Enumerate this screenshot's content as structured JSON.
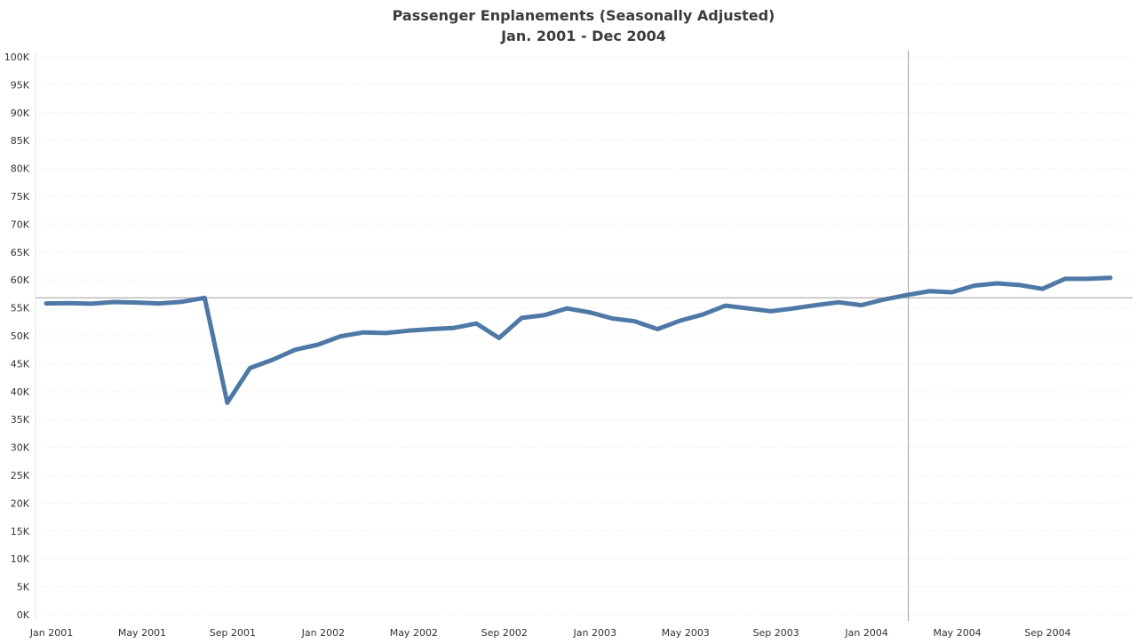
{
  "chart_data": {
    "type": "line",
    "title": "Passenger Enplanements (Seasonally Adjusted)",
    "subtitle": "Jan. 2001 - Dec 2004",
    "xlabel": "",
    "ylabel": "",
    "ylim": [
      0,
      100000
    ],
    "y_ticks": [
      0,
      5000,
      10000,
      15000,
      20000,
      25000,
      30000,
      35000,
      40000,
      45000,
      50000,
      55000,
      60000,
      65000,
      70000,
      75000,
      80000,
      85000,
      90000,
      95000,
      100000
    ],
    "y_tick_labels": [
      "0K",
      "5K",
      "10K",
      "15K",
      "20K",
      "25K",
      "30K",
      "35K",
      "40K",
      "45K",
      "50K",
      "55K",
      "60K",
      "65K",
      "70K",
      "75K",
      "80K",
      "85K",
      "90K",
      "95K",
      "100K"
    ],
    "x_tick_labels": [
      "Jan 2001",
      "May 2001",
      "Sep 2001",
      "Jan 2002",
      "May 2002",
      "Sep 2002",
      "Jan 2003",
      "May 2003",
      "Sep 2003",
      "Jan 2004",
      "May 2004",
      "Sep 2004"
    ],
    "grid": true,
    "line_color": "#4e79a7",
    "reference_line": {
      "value": 56800,
      "color": "#9e9e9e"
    },
    "vertical_reference": {
      "x": "Mar 2004",
      "color": "#9e9e9e"
    },
    "series": [
      {
        "x": [
          "Jan 2001",
          "Feb 2001",
          "Mar 2001",
          "Apr 2001",
          "May 2001",
          "Jun 2001",
          "Jul 2001",
          "Aug 2001",
          "Sep 2001",
          "Oct 2001",
          "Nov 2001",
          "Dec 2001",
          "Jan 2002",
          "Feb 2002",
          "Mar 2002",
          "Apr 2002",
          "May 2002",
          "Jun 2002",
          "Jul 2002",
          "Aug 2002",
          "Sep 2002",
          "Oct 2002",
          "Nov 2002",
          "Dec 2002",
          "Jan 2003",
          "Feb 2003",
          "Mar 2003",
          "Apr 2003",
          "May 2003",
          "Jun 2003",
          "Jul 2003",
          "Aug 2003",
          "Sep 2003",
          "Oct 2003",
          "Nov 2003",
          "Dec 2003",
          "Jan 2004",
          "Feb 2004",
          "Mar 2004",
          "Apr 2004",
          "May 2004",
          "Jun 2004",
          "Jul 2004",
          "Aug 2004",
          "Sep 2004",
          "Oct 2004",
          "Nov 2004",
          "Dec 2004"
        ],
        "values": [
          55800,
          55850,
          55750,
          56050,
          55950,
          55800,
          56100,
          56800,
          38000,
          44200,
          45700,
          47500,
          48400,
          49900,
          50600,
          50500,
          50900,
          51200,
          51400,
          52200,
          49600,
          53200,
          53700,
          54900,
          54200,
          53100,
          52600,
          51200,
          52700,
          53800,
          55400,
          54900,
          54400,
          54900,
          55500,
          56000,
          55500,
          56500,
          57300,
          58000,
          57800,
          59000,
          59400,
          59100,
          58400,
          60200,
          60200,
          60400
        ]
      }
    ]
  }
}
